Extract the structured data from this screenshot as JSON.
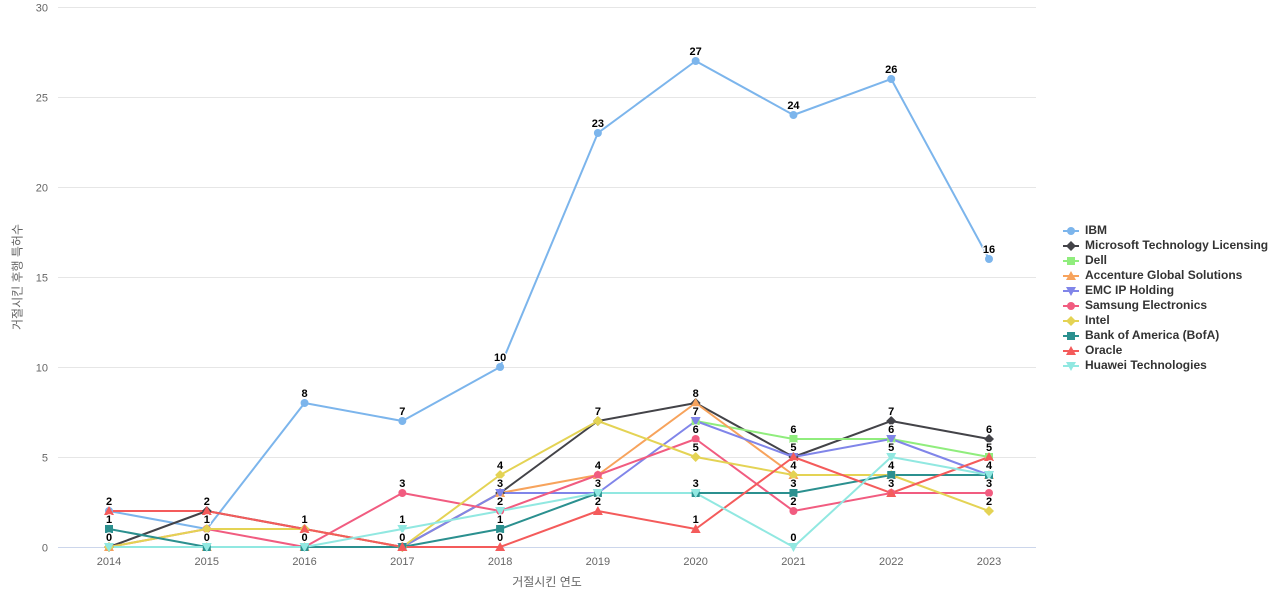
{
  "chart_data": {
    "type": "line",
    "title": "",
    "xlabel": "거절시킨 연도",
    "ylabel": "거절시킨 후행 특허수",
    "categories": [
      "2014",
      "2015",
      "2016",
      "2017",
      "2018",
      "2019",
      "2020",
      "2021",
      "2022",
      "2023"
    ],
    "ylim": [
      0,
      30
    ],
    "y_ticks": [
      0,
      5,
      10,
      15,
      20,
      25,
      30
    ],
    "grid": true,
    "legend_position": "right",
    "axis_line_color": "#ccd6eb",
    "grid_color": "#e6e6e6",
    "series": [
      {
        "name": "IBM",
        "color": "#7cb5ec",
        "marker": "circle",
        "values": [
          2,
          1,
          8,
          7,
          10,
          23,
          27,
          24,
          26,
          16
        ]
      },
      {
        "name": "Microsoft Technology Licensing",
        "color": "#434348",
        "marker": "diamond",
        "values": [
          0,
          2,
          1,
          0,
          3,
          7,
          8,
          5,
          7,
          6
        ]
      },
      {
        "name": "Dell",
        "color": "#90ed7d",
        "marker": "square",
        "values": [
          null,
          null,
          null,
          null,
          null,
          null,
          7,
          6,
          6,
          5
        ]
      },
      {
        "name": "Accenture Global Solutions",
        "color": "#f7a35c",
        "marker": "triangle",
        "values": [
          0,
          0,
          0,
          0,
          3,
          4,
          8,
          4,
          4,
          4
        ]
      },
      {
        "name": "EMC IP Holding",
        "color": "#8085e9",
        "marker": "triangle-down",
        "values": [
          null,
          null,
          null,
          0,
          3,
          3,
          7,
          5,
          6,
          4
        ]
      },
      {
        "name": "Samsung Electronics",
        "color": "#f15c80",
        "marker": "circle",
        "values": [
          0,
          1,
          0,
          3,
          2,
          4,
          6,
          2,
          3,
          3
        ]
      },
      {
        "name": "Intel",
        "color": "#e4d354",
        "marker": "diamond",
        "values": [
          0,
          1,
          1,
          0,
          4,
          7,
          5,
          4,
          4,
          2
        ]
      },
      {
        "name": "Bank of America (BofA)",
        "color": "#2b908f",
        "marker": "square",
        "values": [
          1,
          0,
          0,
          0,
          1,
          3,
          3,
          3,
          4,
          4
        ]
      },
      {
        "name": "Oracle",
        "color": "#f45b5b",
        "marker": "triangle",
        "values": [
          2,
          2,
          1,
          0,
          0,
          2,
          1,
          5,
          3,
          5
        ]
      },
      {
        "name": "Huawei Technologies",
        "color": "#91e8e1",
        "marker": "triangle-down",
        "values": [
          0,
          0,
          0,
          1,
          2,
          3,
          3,
          0,
          5,
          4
        ]
      }
    ]
  }
}
